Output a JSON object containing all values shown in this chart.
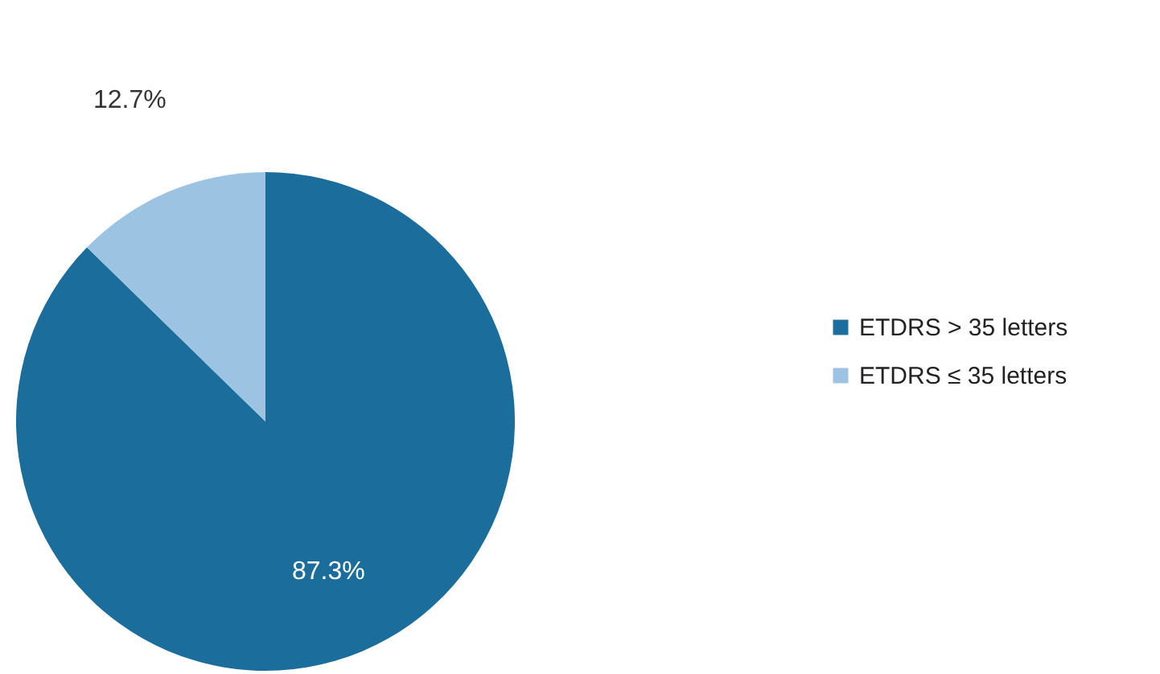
{
  "chart_data": {
    "type": "pie",
    "categories": [
      "ETDRS > 35 letters",
      "ETDRS ≤ 35 letters"
    ],
    "values": [
      87.3,
      12.7
    ],
    "colors": [
      "#1b6d9c",
      "#9dc3e2"
    ],
    "value_labels": [
      "87.3%",
      "12.7%"
    ],
    "legend": "right"
  }
}
